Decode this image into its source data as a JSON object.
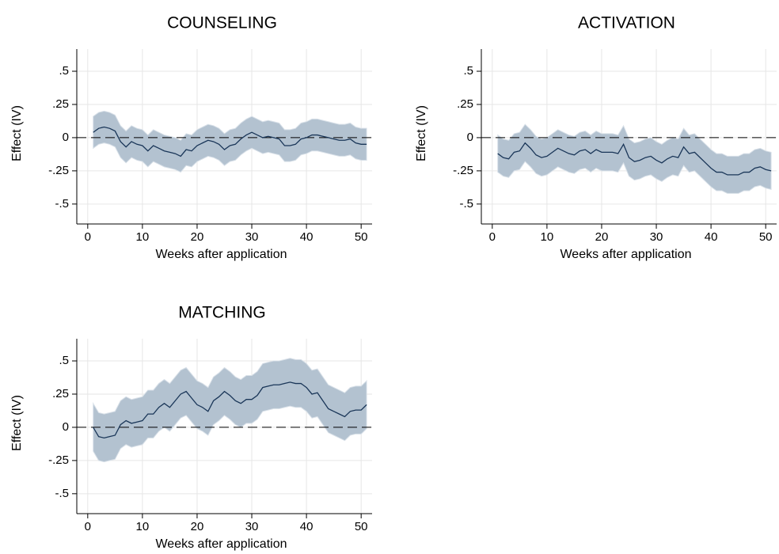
{
  "chart_data": [
    {
      "type": "line",
      "title": "COUNSELING",
      "xlabel": "Weeks after application",
      "ylabel": "Effect (IV)",
      "x": [
        1,
        2,
        3,
        4,
        5,
        6,
        7,
        8,
        9,
        10,
        11,
        12,
        13,
        14,
        15,
        16,
        17,
        18,
        19,
        20,
        21,
        22,
        23,
        24,
        25,
        26,
        27,
        28,
        29,
        30,
        31,
        32,
        33,
        34,
        35,
        36,
        37,
        38,
        39,
        40,
        41,
        42,
        43,
        44,
        45,
        46,
        47,
        48,
        49,
        50,
        51
      ],
      "values": [
        0.04,
        0.07,
        0.08,
        0.07,
        0.05,
        -0.03,
        -0.07,
        -0.03,
        -0.05,
        -0.06,
        -0.1,
        -0.06,
        -0.08,
        -0.1,
        -0.11,
        -0.12,
        -0.14,
        -0.09,
        -0.1,
        -0.06,
        -0.04,
        -0.02,
        -0.03,
        -0.05,
        -0.09,
        -0.06,
        -0.05,
        -0.01,
        0.02,
        0.04,
        0.02,
        0,
        0.01,
        0,
        -0.01,
        -0.06,
        -0.06,
        -0.05,
        -0.01,
        0,
        0.02,
        0.02,
        0.01,
        0,
        -0.01,
        -0.02,
        -0.02,
        -0.01,
        -0.04,
        -0.05,
        -0.05
      ],
      "ci_lower": [
        -0.08,
        -0.05,
        -0.04,
        -0.05,
        -0.07,
        -0.15,
        -0.19,
        -0.15,
        -0.17,
        -0.18,
        -0.22,
        -0.18,
        -0.2,
        -0.22,
        -0.23,
        -0.24,
        -0.26,
        -0.21,
        -0.22,
        -0.18,
        -0.16,
        -0.14,
        -0.15,
        -0.17,
        -0.21,
        -0.18,
        -0.17,
        -0.13,
        -0.1,
        -0.08,
        -0.1,
        -0.12,
        -0.11,
        -0.12,
        -0.13,
        -0.18,
        -0.18,
        -0.17,
        -0.13,
        -0.12,
        -0.1,
        -0.1,
        -0.11,
        -0.12,
        -0.13,
        -0.14,
        -0.14,
        -0.13,
        -0.16,
        -0.17,
        -0.17
      ],
      "ci_upper": [
        0.16,
        0.19,
        0.2,
        0.19,
        0.17,
        0.09,
        0.05,
        0.09,
        0.07,
        0.06,
        0.02,
        0.06,
        0.04,
        0.02,
        0.01,
        0,
        -0.02,
        0.03,
        0.02,
        0.06,
        0.08,
        0.1,
        0.09,
        0.07,
        0.03,
        0.06,
        0.07,
        0.11,
        0.14,
        0.16,
        0.14,
        0.12,
        0.13,
        0.12,
        0.11,
        0.06,
        0.06,
        0.07,
        0.11,
        0.12,
        0.14,
        0.14,
        0.13,
        0.12,
        0.11,
        0.1,
        0.1,
        0.11,
        0.08,
        0.07,
        0.07
      ],
      "color": "#1a3658",
      "band_color": "#b3c2d0",
      "yline": 0,
      "xlim": [
        -2,
        52
      ],
      "xticks": [
        0,
        10,
        20,
        30,
        40,
        50
      ],
      "ylim": [
        -0.65,
        0.667
      ],
      "yticks": [
        {
          "value": 0.5,
          "label": ".5"
        },
        {
          "value": 0.25,
          "label": ".25"
        },
        0,
        {
          "value": -0.25,
          "label": "-.25"
        },
        {
          "value": -0.5,
          "label": "-.5"
        }
      ],
      "grid": true
    },
    {
      "type": "line",
      "title": "ACTIVATION",
      "xlabel": "Weeks after application",
      "ylabel": "Effect (IV)",
      "x": [
        1,
        2,
        3,
        4,
        5,
        6,
        7,
        8,
        9,
        10,
        11,
        12,
        13,
        14,
        15,
        16,
        17,
        18,
        19,
        20,
        21,
        22,
        23,
        24,
        25,
        26,
        27,
        28,
        29,
        30,
        31,
        32,
        33,
        34,
        35,
        36,
        37,
        38,
        39,
        40,
        41,
        42,
        43,
        44,
        45,
        46,
        47,
        48,
        49,
        50,
        51
      ],
      "values": [
        -0.12,
        -0.15,
        -0.16,
        -0.11,
        -0.1,
        -0.04,
        -0.08,
        -0.13,
        -0.15,
        -0.14,
        -0.11,
        -0.08,
        -0.1,
        -0.12,
        -0.13,
        -0.1,
        -0.09,
        -0.12,
        -0.09,
        -0.11,
        -0.11,
        -0.11,
        -0.12,
        -0.05,
        -0.15,
        -0.18,
        -0.17,
        -0.15,
        -0.14,
        -0.17,
        -0.19,
        -0.16,
        -0.14,
        -0.15,
        -0.07,
        -0.12,
        -0.11,
        -0.15,
        -0.19,
        -0.23,
        -0.26,
        -0.26,
        -0.28,
        -0.28,
        -0.28,
        -0.26,
        -0.26,
        -0.23,
        -0.22,
        -0.24,
        -0.25
      ],
      "ci_lower": [
        -0.26,
        -0.29,
        -0.3,
        -0.25,
        -0.24,
        -0.18,
        -0.22,
        -0.27,
        -0.29,
        -0.28,
        -0.25,
        -0.22,
        -0.24,
        -0.26,
        -0.27,
        -0.24,
        -0.23,
        -0.26,
        -0.23,
        -0.25,
        -0.25,
        -0.25,
        -0.26,
        -0.19,
        -0.29,
        -0.32,
        -0.31,
        -0.29,
        -0.28,
        -0.31,
        -0.33,
        -0.3,
        -0.28,
        -0.29,
        -0.21,
        -0.26,
        -0.25,
        -0.29,
        -0.33,
        -0.37,
        -0.4,
        -0.4,
        -0.42,
        -0.42,
        -0.42,
        -0.4,
        -0.4,
        -0.37,
        -0.36,
        -0.38,
        -0.39
      ],
      "ci_upper": [
        0.02,
        -0.01,
        -0.02,
        0.03,
        0.04,
        0.1,
        0.06,
        0.01,
        -0.01,
        0,
        0.03,
        0.06,
        0.04,
        0.02,
        0.01,
        0.04,
        0.05,
        0.02,
        0.05,
        0.03,
        0.03,
        0.03,
        0.02,
        0.09,
        -0.01,
        -0.04,
        -0.03,
        -0.01,
        0,
        -0.03,
        -0.05,
        -0.02,
        0,
        -0.01,
        0.07,
        0.02,
        0.03,
        -0.01,
        -0.05,
        -0.09,
        -0.12,
        -0.12,
        -0.14,
        -0.14,
        -0.14,
        -0.12,
        -0.12,
        -0.09,
        -0.08,
        -0.1,
        -0.11
      ],
      "color": "#1a3658",
      "band_color": "#b3c2d0",
      "yline": 0,
      "xlim": [
        -2,
        52
      ],
      "xticks": [
        0,
        10,
        20,
        30,
        40,
        50
      ],
      "ylim": [
        -0.65,
        0.667
      ],
      "yticks": [
        {
          "value": 0.5,
          "label": ".5"
        },
        {
          "value": 0.25,
          "label": ".25"
        },
        0,
        {
          "value": -0.25,
          "label": "-.25"
        },
        {
          "value": -0.5,
          "label": "-.5"
        }
      ],
      "grid": true
    },
    {
      "type": "line",
      "title": "MATCHING",
      "xlabel": "Weeks after application",
      "ylabel": "Effect (IV)",
      "x": [
        1,
        2,
        3,
        4,
        5,
        6,
        7,
        8,
        9,
        10,
        11,
        12,
        13,
        14,
        15,
        16,
        17,
        18,
        19,
        20,
        21,
        22,
        23,
        24,
        25,
        26,
        27,
        28,
        29,
        30,
        31,
        32,
        33,
        34,
        35,
        36,
        37,
        38,
        39,
        40,
        41,
        42,
        43,
        44,
        45,
        46,
        47,
        48,
        49,
        50,
        51
      ],
      "values": [
        0,
        -0.07,
        -0.08,
        -0.07,
        -0.06,
        0.02,
        0.05,
        0.03,
        0.04,
        0.05,
        0.1,
        0.1,
        0.15,
        0.18,
        0.15,
        0.2,
        0.25,
        0.27,
        0.22,
        0.17,
        0.15,
        0.12,
        0.2,
        0.23,
        0.27,
        0.24,
        0.2,
        0.18,
        0.21,
        0.21,
        0.24,
        0.3,
        0.31,
        0.32,
        0.32,
        0.33,
        0.34,
        0.33,
        0.33,
        0.3,
        0.25,
        0.26,
        0.2,
        0.14,
        0.12,
        0.1,
        0.08,
        0.12,
        0.13,
        0.13,
        0.17
      ],
      "ci_lower": [
        -0.18,
        -0.25,
        -0.26,
        -0.25,
        -0.24,
        -0.16,
        -0.13,
        -0.15,
        -0.14,
        -0.13,
        -0.08,
        -0.08,
        -0.03,
        0,
        -0.03,
        0.02,
        0.07,
        0.09,
        0.04,
        -0.01,
        -0.03,
        -0.06,
        0.02,
        0.05,
        0.09,
        0.06,
        0.02,
        0,
        0.03,
        0.03,
        0.06,
        0.12,
        0.13,
        0.14,
        0.14,
        0.15,
        0.16,
        0.15,
        0.15,
        0.12,
        0.07,
        0.08,
        0.02,
        -0.04,
        -0.06,
        -0.08,
        -0.1,
        -0.06,
        -0.05,
        -0.05,
        -0.01
      ],
      "ci_upper": [
        0.18,
        0.11,
        0.1,
        0.11,
        0.12,
        0.2,
        0.23,
        0.21,
        0.22,
        0.23,
        0.28,
        0.28,
        0.33,
        0.36,
        0.33,
        0.38,
        0.43,
        0.45,
        0.4,
        0.35,
        0.33,
        0.3,
        0.38,
        0.41,
        0.45,
        0.42,
        0.38,
        0.36,
        0.39,
        0.39,
        0.42,
        0.48,
        0.49,
        0.5,
        0.5,
        0.51,
        0.52,
        0.51,
        0.51,
        0.48,
        0.43,
        0.44,
        0.38,
        0.32,
        0.3,
        0.28,
        0.26,
        0.3,
        0.31,
        0.31,
        0.35
      ],
      "color": "#1a3658",
      "band_color": "#b3c2d0",
      "yline": 0,
      "xlim": [
        -2,
        52
      ],
      "xticks": [
        0,
        10,
        20,
        30,
        40,
        50
      ],
      "ylim": [
        -0.65,
        0.667
      ],
      "yticks": [
        {
          "value": 0.5,
          "label": ".5"
        },
        {
          "value": 0.25,
          "label": ".25"
        },
        0,
        {
          "value": -0.25,
          "label": "-.25"
        },
        {
          "value": -0.5,
          "label": "-.5"
        }
      ],
      "grid": true
    }
  ]
}
